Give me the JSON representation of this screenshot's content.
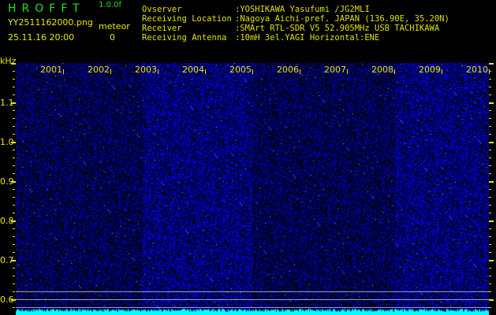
{
  "header": {
    "app_title": "HROFFT",
    "version": "1.0.0f",
    "filename": "YY2511162000.png",
    "meteor_label": "meteor",
    "datetime": "25.11.16 20:00",
    "meteor_count": "0"
  },
  "info": [
    {
      "label": "Ovserver",
      "value": ":YOSHIKAWA Yasufumi /JG2MLI"
    },
    {
      "label": "Receiving Location",
      "value": ":Nagoya Aichi-pref. JAPAN (136.90E, 35.20N)"
    },
    {
      "label": "Receiver",
      "value": ":SMArt RTL-SDR V5 52.905MHz USB TACHIKAWA"
    },
    {
      "label": "Receiving Antenna",
      "value": ":10mH 3el.YAGI Horizontal:ENE"
    }
  ],
  "colors": {
    "text_green": "#22e022",
    "text_yellow": "#e8e800",
    "noise_blue": "#1a1aff",
    "baseline_cyan": "#00ffff",
    "marker_gray": "#a0a0a0"
  },
  "chart_data": {
    "type": "heatmap",
    "ylabel": "kHz",
    "ylim": [
      0.56,
      1.2
    ],
    "y_ticks": [
      "1.1",
      "1.0",
      "0.9",
      "0.8",
      "0.7",
      "0.6"
    ],
    "y_tick_values": [
      1.1,
      1.0,
      0.9,
      0.8,
      0.7,
      0.6
    ],
    "x_ticks": [
      "2001",
      "2002",
      "2003",
      "2004",
      "2005",
      "2006",
      "2007",
      "2008",
      "2009",
      "2010"
    ],
    "marker_lines_khz": [
      0.62,
      0.6,
      0.58
    ]
  }
}
